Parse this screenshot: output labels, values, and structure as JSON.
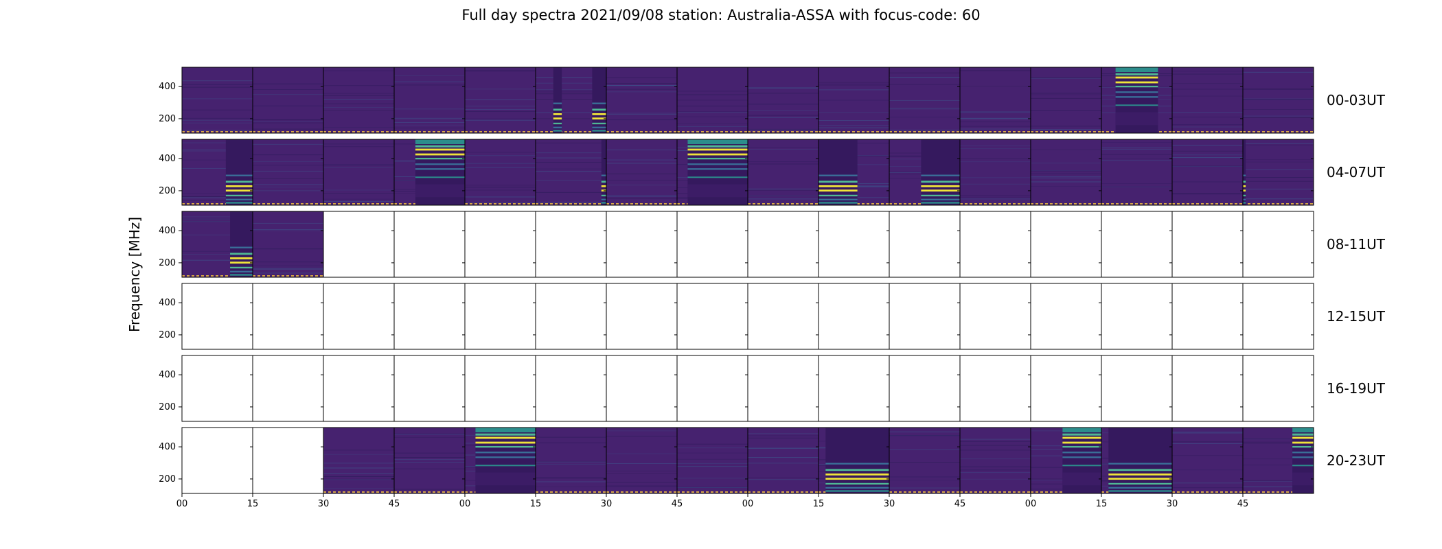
{
  "title": "Full day spectra 2021/09/08 station: Australia-ASSA with focus-code: 60",
  "colors": {
    "background_dark": "#46226f",
    "background_mid": "#3c1c66",
    "empty_panel": "#ffffff",
    "burst_yellow": "#f0e43a",
    "burst_green": "#4fb894",
    "burst_blue": "#3a6f98",
    "burst_teal": "#2c8d8c",
    "frame": "#000000",
    "dashed_base": "#d7a84a"
  },
  "chart_data": {
    "type": "heatmap",
    "title": "Full day spectra 2021/09/08 station: Australia-ASSA with focus-code: 60",
    "ylabel": "Frequency [MHz]",
    "xlabel": "",
    "ylim": [
      110,
      520
    ],
    "y_ticks": [
      200,
      400
    ],
    "y_tick_labels": [
      "200",
      "400"
    ],
    "x_ticks": [
      "00",
      "15",
      "30",
      "45",
      "00",
      "15",
      "30",
      "45",
      "00",
      "15",
      "30",
      "45",
      "00",
      "15",
      "30",
      "45"
    ],
    "panels_per_row": 16,
    "panel_minutes": 15,
    "rows": [
      {
        "label": "00-03UT",
        "filled": [
          true,
          true,
          true,
          true,
          true,
          true,
          true,
          true,
          true,
          true,
          true,
          true,
          true,
          true,
          true,
          true
        ],
        "bursts": [
          {
            "panel": 5,
            "t0": 0.25,
            "t1": 0.37,
            "profile": "low"
          },
          {
            "panel": 5,
            "t0": 0.8,
            "t1": 1.0,
            "profile": "low"
          },
          {
            "panel": 13,
            "t0": 0.2,
            "t1": 0.8,
            "profile": "high"
          }
        ]
      },
      {
        "label": "04-07UT",
        "filled": [
          true,
          true,
          true,
          true,
          true,
          true,
          true,
          true,
          true,
          true,
          true,
          true,
          true,
          true,
          true,
          true
        ],
        "bursts": [
          {
            "panel": 0,
            "t0": 0.62,
            "t1": 1.0,
            "profile": "low"
          },
          {
            "panel": 3,
            "t0": 0.3,
            "t1": 1.0,
            "profile": "high"
          },
          {
            "panel": 5,
            "t0": 0.93,
            "t1": 1.0,
            "profile": "low"
          },
          {
            "panel": 7,
            "t0": 0.15,
            "t1": 1.0,
            "profile": "high"
          },
          {
            "panel": 9,
            "t0": 0.0,
            "t1": 0.55,
            "profile": "low"
          },
          {
            "panel": 10,
            "t0": 0.45,
            "t1": 1.0,
            "profile": "low"
          },
          {
            "panel": 15,
            "t0": 0.0,
            "t1": 0.04,
            "profile": "low"
          }
        ]
      },
      {
        "label": "08-11UT",
        "filled": [
          true,
          true,
          false,
          false,
          false,
          false,
          false,
          false,
          false,
          false,
          false,
          false,
          false,
          false,
          false,
          false
        ],
        "bursts": [
          {
            "panel": 0,
            "t0": 0.68,
            "t1": 1.0,
            "profile": "low"
          }
        ]
      },
      {
        "label": "12-15UT",
        "filled": [
          false,
          false,
          false,
          false,
          false,
          false,
          false,
          false,
          false,
          false,
          false,
          false,
          false,
          false,
          false,
          false
        ],
        "bursts": []
      },
      {
        "label": "16-19UT",
        "filled": [
          false,
          false,
          false,
          false,
          false,
          false,
          false,
          false,
          false,
          false,
          false,
          false,
          false,
          false,
          false,
          false
        ],
        "bursts": []
      },
      {
        "label": "20-23UT",
        "filled": [
          false,
          false,
          true,
          true,
          true,
          true,
          true,
          true,
          true,
          true,
          true,
          true,
          true,
          true,
          true,
          true
        ],
        "bursts": [
          {
            "panel": 4,
            "t0": 0.15,
            "t1": 1.0,
            "profile": "high"
          },
          {
            "panel": 9,
            "t0": 0.1,
            "t1": 1.0,
            "profile": "low"
          },
          {
            "panel": 12,
            "t0": 0.45,
            "t1": 1.0,
            "profile": "high"
          },
          {
            "panel": 13,
            "t0": 0.1,
            "t1": 1.0,
            "profile": "low"
          },
          {
            "panel": 15,
            "t0": 0.7,
            "t1": 1.0,
            "profile": "high"
          }
        ]
      }
    ]
  }
}
